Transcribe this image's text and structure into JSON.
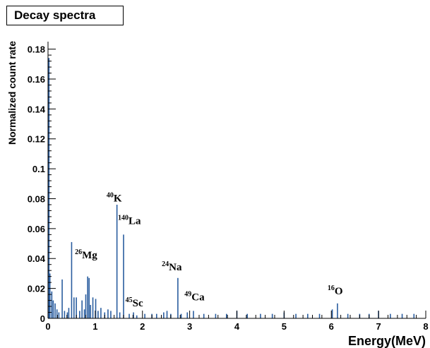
{
  "chart_data": {
    "type": "bar",
    "title": "Decay spectra",
    "xlabel": "Energy(MeV)",
    "ylabel": "Normalized count rate",
    "xlim": [
      0,
      8
    ],
    "ylim": [
      0,
      0.185
    ],
    "xticks": [
      "0",
      "1",
      "2",
      "3",
      "4",
      "5",
      "6",
      "7",
      "8"
    ],
    "yticks": [
      "0",
      "0.02",
      "0.04",
      "0.06",
      "0.08",
      "0.1",
      "0.12",
      "0.14",
      "0.16",
      "0.18"
    ],
    "color": "#2a5d9f",
    "lines": [
      {
        "x": 0.02,
        "y": 0.174
      },
      {
        "x": 0.04,
        "y": 0.03
      },
      {
        "x": 0.08,
        "y": 0.018
      },
      {
        "x": 0.11,
        "y": 0.012
      },
      {
        "x": 0.15,
        "y": 0.01
      },
      {
        "x": 0.19,
        "y": 0.006
      },
      {
        "x": 0.23,
        "y": 0.004
      },
      {
        "x": 0.3,
        "y": 0.026
      },
      {
        "x": 0.35,
        "y": 0.005
      },
      {
        "x": 0.41,
        "y": 0.004
      },
      {
        "x": 0.44,
        "y": 0.007
      },
      {
        "x": 0.5,
        "y": 0.051
      },
      {
        "x": 0.55,
        "y": 0.014
      },
      {
        "x": 0.6,
        "y": 0.014
      },
      {
        "x": 0.67,
        "y": 0.005
      },
      {
        "x": 0.72,
        "y": 0.012
      },
      {
        "x": 0.77,
        "y": 0.006
      },
      {
        "x": 0.8,
        "y": 0.016
      },
      {
        "x": 0.84,
        "y": 0.028
      },
      {
        "x": 0.87,
        "y": 0.027
      },
      {
        "x": 0.9,
        "y": 0.009
      },
      {
        "x": 0.95,
        "y": 0.014
      },
      {
        "x": 1.01,
        "y": 0.013
      },
      {
        "x": 1.06,
        "y": 0.005
      },
      {
        "x": 1.12,
        "y": 0.007
      },
      {
        "x": 1.2,
        "y": 0.004
      },
      {
        "x": 1.27,
        "y": 0.006
      },
      {
        "x": 1.33,
        "y": 0.005
      },
      {
        "x": 1.46,
        "y": 0.076
      },
      {
        "x": 1.52,
        "y": 0.004
      },
      {
        "x": 1.6,
        "y": 0.056
      },
      {
        "x": 1.72,
        "y": 0.003
      },
      {
        "x": 1.81,
        "y": 0.004
      },
      {
        "x": 1.88,
        "y": 0.002
      },
      {
        "x": 2.05,
        "y": 0.003
      },
      {
        "x": 2.2,
        "y": 0.003
      },
      {
        "x": 2.3,
        "y": 0.003
      },
      {
        "x": 2.45,
        "y": 0.004
      },
      {
        "x": 2.52,
        "y": 0.005
      },
      {
        "x": 2.6,
        "y": 0.003
      },
      {
        "x": 2.75,
        "y": 0.027
      },
      {
        "x": 2.82,
        "y": 0.003
      },
      {
        "x": 2.95,
        "y": 0.004
      },
      {
        "x": 3.08,
        "y": 0.005
      },
      {
        "x": 3.3,
        "y": 0.003
      },
      {
        "x": 3.55,
        "y": 0.003
      },
      {
        "x": 3.78,
        "y": 0.003
      },
      {
        "x": 4.0,
        "y": 0.005
      },
      {
        "x": 4.22,
        "y": 0.003
      },
      {
        "x": 4.5,
        "y": 0.003
      },
      {
        "x": 4.75,
        "y": 0.003
      },
      {
        "x": 5.0,
        "y": 0.004
      },
      {
        "x": 5.25,
        "y": 0.003
      },
      {
        "x": 5.5,
        "y": 0.003
      },
      {
        "x": 5.75,
        "y": 0.003
      },
      {
        "x": 6.02,
        "y": 0.006
      },
      {
        "x": 6.13,
        "y": 0.01
      },
      {
        "x": 6.35,
        "y": 0.003
      },
      {
        "x": 6.6,
        "y": 0.003
      },
      {
        "x": 6.8,
        "y": 0.003
      },
      {
        "x": 7.0,
        "y": 0.005
      },
      {
        "x": 7.25,
        "y": 0.003
      },
      {
        "x": 7.5,
        "y": 0.003
      },
      {
        "x": 7.75,
        "y": 0.003
      }
    ],
    "annotations": [
      {
        "sup": "40",
        "label": "K",
        "x": 1.24,
        "y": 0.078
      },
      {
        "sup": "140",
        "label": "La",
        "x": 1.48,
        "y": 0.063
      },
      {
        "sup": "26",
        "label": "Mg",
        "x": 0.57,
        "y": 0.04
      },
      {
        "sup": "24",
        "label": "Na",
        "x": 2.41,
        "y": 0.032
      },
      {
        "sup": "45",
        "label": "Sc",
        "x": 1.64,
        "y": 0.008
      },
      {
        "sup": "49",
        "label": "Ca",
        "x": 2.89,
        "y": 0.012
      },
      {
        "sup": "16",
        "label": "O",
        "x": 5.92,
        "y": 0.016
      }
    ]
  }
}
